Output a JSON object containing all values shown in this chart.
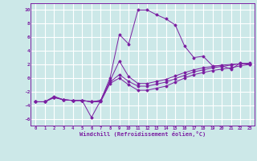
{
  "xlabel": "Windchill (Refroidissement éolien,°C)",
  "background_color": "#cce8e8",
  "grid_color": "#ffffff",
  "line_color": "#7b1fa2",
  "xlim": [
    -0.5,
    23.5
  ],
  "ylim": [
    -7,
    11
  ],
  "xticks": [
    0,
    1,
    2,
    3,
    4,
    5,
    6,
    7,
    8,
    9,
    10,
    11,
    12,
    13,
    14,
    15,
    16,
    17,
    18,
    19,
    20,
    21,
    22,
    23
  ],
  "yticks": [
    -6,
    -4,
    -2,
    0,
    2,
    4,
    6,
    8,
    10
  ],
  "series": [
    {
      "x": [
        0,
        1,
        2,
        3,
        4,
        5,
        6,
        7,
        8,
        9,
        10,
        11,
        12,
        13,
        14,
        15,
        16,
        17,
        18,
        19,
        20,
        21,
        22,
        23
      ],
      "y": [
        -3.5,
        -3.5,
        -2.7,
        -3.2,
        -3.3,
        -3.3,
        -5.8,
        -3.3,
        0.0,
        6.4,
        5.0,
        10.0,
        10.0,
        9.3,
        8.7,
        7.8,
        4.7,
        3.0,
        3.2,
        1.8,
        1.8,
        1.3,
        2.2,
        2.0
      ]
    },
    {
      "x": [
        0,
        1,
        2,
        3,
        4,
        5,
        6,
        7,
        8,
        9,
        10,
        11,
        12,
        13,
        14,
        15,
        16,
        17,
        18,
        19,
        20,
        21,
        22,
        23
      ],
      "y": [
        -3.5,
        -3.5,
        -2.8,
        -3.2,
        -3.3,
        -3.3,
        -3.5,
        -3.3,
        -0.4,
        2.5,
        0.2,
        -0.8,
        -0.8,
        -0.5,
        -0.2,
        0.3,
        0.8,
        1.2,
        1.5,
        1.7,
        1.9,
        2.0,
        2.1,
        2.1
      ]
    },
    {
      "x": [
        0,
        1,
        2,
        3,
        4,
        5,
        6,
        7,
        8,
        9,
        10,
        11,
        12,
        13,
        14,
        15,
        16,
        17,
        18,
        19,
        20,
        21,
        22,
        23
      ],
      "y": [
        -3.5,
        -3.5,
        -2.8,
        -3.2,
        -3.3,
        -3.3,
        -3.5,
        -3.3,
        -0.6,
        0.5,
        -0.5,
        -1.2,
        -1.2,
        -0.9,
        -0.6,
        -0.1,
        0.4,
        0.9,
        1.2,
        1.5,
        1.7,
        1.9,
        2.1,
        2.2
      ]
    },
    {
      "x": [
        0,
        1,
        2,
        3,
        4,
        5,
        6,
        7,
        8,
        9,
        10,
        11,
        12,
        13,
        14,
        15,
        16,
        17,
        18,
        19,
        20,
        21,
        22,
        23
      ],
      "y": [
        -3.5,
        -3.5,
        -2.9,
        -3.2,
        -3.3,
        -3.3,
        -3.5,
        -3.5,
        -0.8,
        0.0,
        -1.0,
        -1.8,
        -1.8,
        -1.5,
        -1.2,
        -0.6,
        0.0,
        0.5,
        0.8,
        1.1,
        1.3,
        1.5,
        1.8,
        2.0
      ]
    }
  ]
}
